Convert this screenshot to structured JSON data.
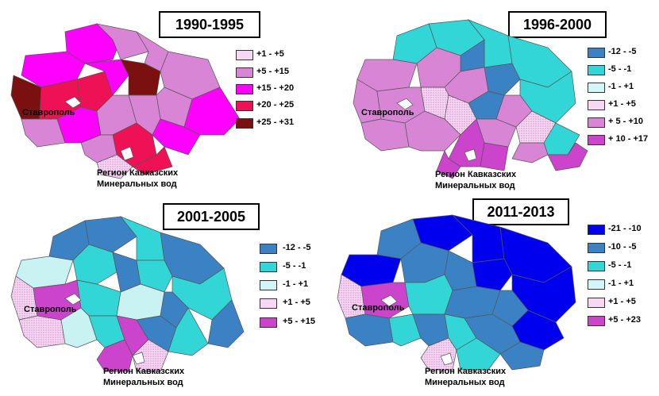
{
  "panels": [
    {
      "title": "1990-1995",
      "legend": [
        {
          "label": "+1 - +5",
          "color": "#f4c8f0",
          "pattern": true
        },
        {
          "label": "+5 - +15",
          "color": "#d985d6"
        },
        {
          "label": "+15 - +20",
          "color": "#ff00ff"
        },
        {
          "label": "+20 - +25",
          "color": "#ee1155"
        },
        {
          "label": "+25 - +31",
          "color": "#7a1010"
        }
      ],
      "city_label": "Ставрополь",
      "region_label_1": "Регион Кавказских",
      "region_label_2": "Минеральных вод"
    },
    {
      "title": "1996-2000",
      "legend": [
        {
          "label": "-12 - -5",
          "color": "#3b82c4"
        },
        {
          "label": "-5 - -1",
          "color": "#33d6d6"
        },
        {
          "label": "-1 - +1",
          "color": "#c9f3f3",
          "pattern": true
        },
        {
          "label": "+1 - +5",
          "color": "#f4c8f0",
          "pattern": true
        },
        {
          "label": "+ 5 - +10",
          "color": "#d985d6"
        },
        {
          "label": "+ 10 - +17",
          "color": "#cc44cc"
        }
      ],
      "city_label": "Ставрополь",
      "region_label_1": "Регион Кавказских",
      "region_label_2": "Минеральных вод"
    },
    {
      "title": "2001-2005",
      "legend": [
        {
          "label": "-12 - -5",
          "color": "#3b82c4"
        },
        {
          "label": "-5 - -1",
          "color": "#33d6d6"
        },
        {
          "label": "-1 - +1",
          "color": "#c9f3f3",
          "pattern": true
        },
        {
          "label": "+1 - +5",
          "color": "#f4c8f0",
          "pattern": true
        },
        {
          "label": "+5 - +15",
          "color": "#cc44cc"
        }
      ],
      "city_label": "Ставрополь",
      "region_label_1": "Регион Кавказских",
      "region_label_2": "Минеральных вод"
    },
    {
      "title": "2011-2013",
      "legend": [
        {
          "label": "-21 - -10",
          "color": "#0000ee"
        },
        {
          "label": "-10 - -5",
          "color": "#3b82c4"
        },
        {
          "label": "-5 - -1",
          "color": "#33d6d6"
        },
        {
          "label": "-1 - +1",
          "color": "#c9f3f3",
          "pattern": true
        },
        {
          "label": "+1 - +5",
          "color": "#f4c8f0",
          "pattern": true
        },
        {
          "label": "+5 - +23",
          "color": "#cc44cc"
        }
      ],
      "city_label": "Ставрополь",
      "region_label_1": "Регион Кавказских",
      "region_label_2": "Минеральных вод"
    }
  ]
}
